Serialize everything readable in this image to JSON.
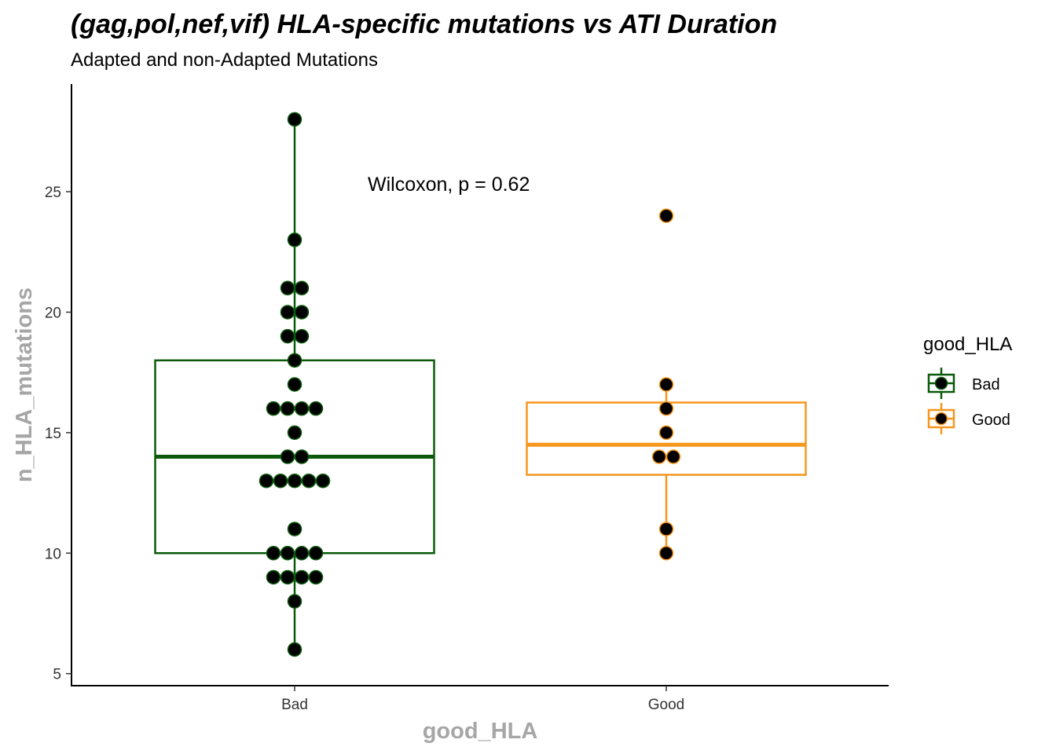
{
  "chart_data": {
    "type": "box",
    "title": "(gag,pol,nef,vif) HLA-specific mutations vs ATI Duration",
    "subtitle": "Adapted and non-Adapted Mutations",
    "xlabel": "good_HLA",
    "ylabel": "n_HLA_mutations",
    "ylim": [
      4.5,
      29.5
    ],
    "yticks": [
      5,
      10,
      15,
      20,
      25
    ],
    "categories": [
      "Bad",
      "Good"
    ],
    "colors": {
      "Bad": "#0b5a0b",
      "Good": "#f7961d"
    },
    "boxes": [
      {
        "name": "Bad",
        "q1": 10,
        "median": 14,
        "q3": 18,
        "whisker_low": 6,
        "whisker_high": 28,
        "points": [
          6,
          8,
          9,
          9,
          9,
          9,
          10,
          10,
          10,
          10,
          11,
          13,
          13,
          13,
          13,
          13,
          14,
          14,
          15,
          16,
          16,
          16,
          16,
          17,
          18,
          19,
          19,
          20,
          20,
          21,
          21,
          23,
          28
        ]
      },
      {
        "name": "Good",
        "q1": 13.25,
        "median": 14.5,
        "q3": 16.25,
        "whisker_low": 10,
        "whisker_high": 17,
        "points": [
          10,
          11,
          14,
          14,
          15,
          16,
          17,
          24
        ]
      }
    ],
    "annotation": "Wilcoxon, p = 0.62",
    "legend": {
      "title": "good_HLA",
      "entries": [
        "Bad",
        "Good"
      ],
      "position": "right"
    }
  }
}
